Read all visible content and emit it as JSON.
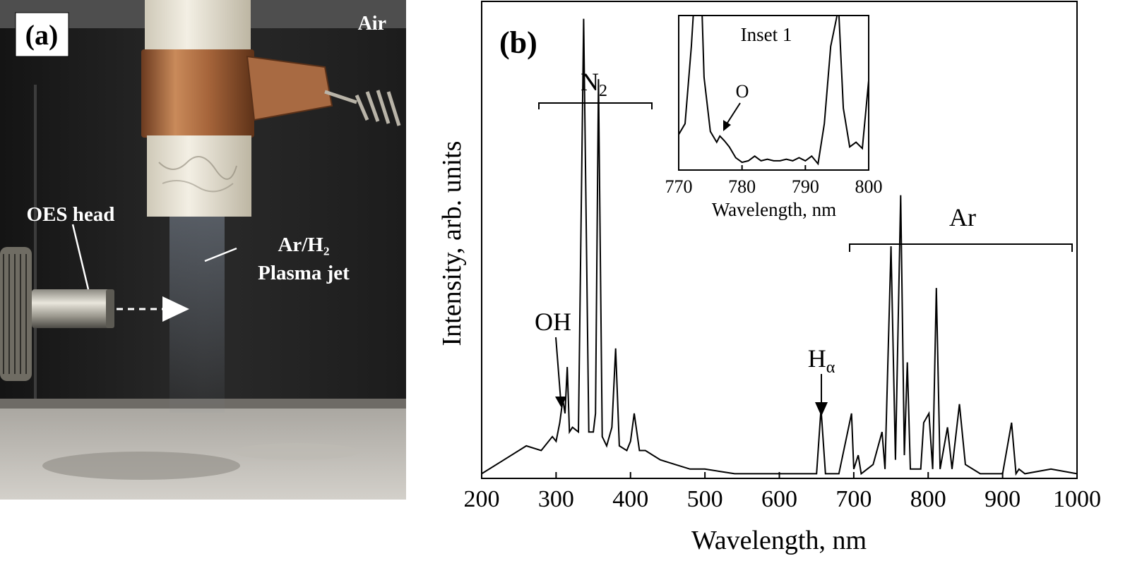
{
  "panel_a": {
    "label": "(a)",
    "air_label": "Air",
    "oes_label": "OES head",
    "plasma_line1": "Ar/H₂",
    "plasma_line2": "Plasma jet"
  },
  "panel_b": {
    "label": "(b)",
    "annotations": {
      "n2": "N",
      "n2_sub": "2",
      "oh": "OH",
      "halpha": "H",
      "halpha_sub": "α",
      "ar": "Ar"
    }
  },
  "chart_data": [
    {
      "type": "line",
      "title": "",
      "xlabel": "Wavelength, nm",
      "ylabel": "Intensity, arb. units",
      "xlim": [
        200,
        1000
      ],
      "ylim": [
        0,
        1.0
      ],
      "xticks": [
        "200",
        "300",
        "400",
        "500",
        "600",
        "700",
        "800",
        "900",
        "1000"
      ],
      "yticks": [],
      "grid": false,
      "series": [
        {
          "x": [
            200,
            230,
            260,
            280,
            295,
            300,
            305,
            309,
            312,
            315,
            318,
            322,
            330,
            337,
            344,
            350,
            353,
            357,
            362,
            368,
            375,
            380,
            385,
            395,
            400,
            405,
            412,
            420,
            440,
            460,
            480,
            500,
            520,
            540,
            560,
            580,
            600,
            620,
            640,
            650,
            656,
            662,
            680,
            697,
            700,
            706,
            710,
            726,
            738,
            742,
            750,
            756,
            763,
            768,
            772,
            776,
            790,
            794,
            801,
            806,
            811,
            816,
            826,
            832,
            842,
            850,
            870,
            900,
            912,
            918,
            922,
            930,
            965,
            1000
          ],
          "y": [
            0.01,
            0.04,
            0.07,
            0.06,
            0.09,
            0.08,
            0.12,
            0.17,
            0.14,
            0.24,
            0.1,
            0.11,
            0.1,
            0.99,
            0.1,
            0.1,
            0.14,
            0.86,
            0.09,
            0.07,
            0.11,
            0.28,
            0.07,
            0.06,
            0.08,
            0.14,
            0.06,
            0.06,
            0.04,
            0.03,
            0.02,
            0.02,
            0.015,
            0.01,
            0.01,
            0.01,
            0.01,
            0.01,
            0.01,
            0.01,
            0.15,
            0.01,
            0.01,
            0.14,
            0.02,
            0.05,
            0.01,
            0.03,
            0.1,
            0.02,
            0.5,
            0.04,
            0.61,
            0.05,
            0.25,
            0.02,
            0.02,
            0.12,
            0.14,
            0.02,
            0.41,
            0.02,
            0.11,
            0.02,
            0.16,
            0.03,
            0.01,
            0.01,
            0.12,
            0.01,
            0.02,
            0.01,
            0.02,
            0.01
          ]
        }
      ]
    },
    {
      "type": "line",
      "title": "Inset 1",
      "xlabel": "Wavelength, nm",
      "ylabel": "",
      "xlim": [
        770,
        800
      ],
      "ylim": [
        0,
        1.0
      ],
      "xticks": [
        "770",
        "780",
        "790",
        "800"
      ],
      "grid": false,
      "annotation": "O",
      "series": [
        {
          "x": [
            770,
            771,
            772,
            772.3,
            773.7,
            774,
            775,
            776,
            776.5,
            777.2,
            778,
            779,
            780,
            781,
            782,
            783,
            784,
            785,
            786,
            787,
            788,
            789,
            790,
            791,
            792,
            793,
            794,
            795,
            795.3,
            796,
            797,
            798,
            799,
            800
          ],
          "y": [
            0.23,
            0.3,
            0.8,
            1.0,
            1.0,
            0.6,
            0.25,
            0.18,
            0.22,
            0.19,
            0.15,
            0.08,
            0.05,
            0.06,
            0.09,
            0.06,
            0.07,
            0.06,
            0.06,
            0.07,
            0.06,
            0.08,
            0.06,
            0.09,
            0.04,
            0.3,
            0.8,
            1.0,
            1.0,
            0.4,
            0.15,
            0.18,
            0.14,
            0.58
          ]
        }
      ]
    }
  ]
}
